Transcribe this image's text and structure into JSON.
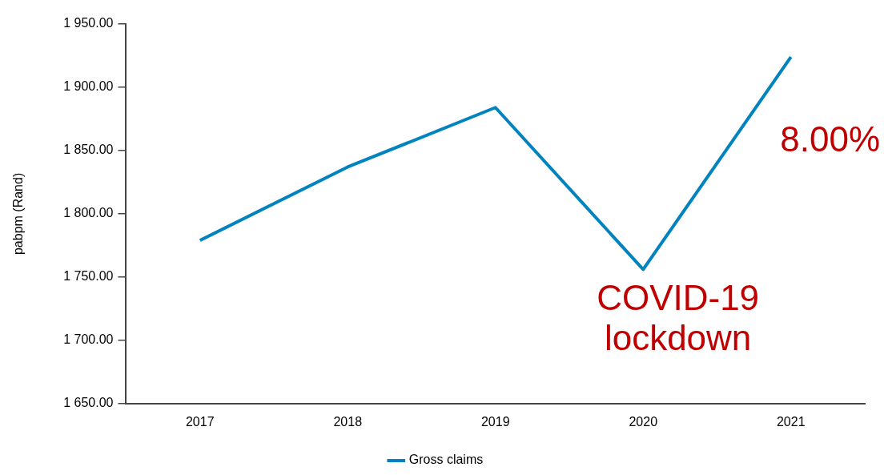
{
  "chart_data": {
    "type": "line",
    "ylabel": "pabpm (Rand)",
    "categories": [
      "2017",
      "2018",
      "2019",
      "2020",
      "2021"
    ],
    "series": [
      {
        "name": "Gross claims",
        "color": "#0083be",
        "values": [
          1779,
          1837,
          1884,
          1756,
          1924
        ]
      }
    ],
    "ylim": [
      1650,
      1950
    ],
    "yticks": [
      {
        "value": 1650,
        "label": "1 650.00"
      },
      {
        "value": 1700,
        "label": "1 700.00"
      },
      {
        "value": 1750,
        "label": "1 750.00"
      },
      {
        "value": 1800,
        "label": "1 800.00"
      },
      {
        "value": 1850,
        "label": "1 850.00"
      },
      {
        "value": 1900,
        "label": "1 900.00"
      },
      {
        "value": 1950,
        "label": "1 950.00"
      }
    ],
    "annotations": [
      "COVID-19 lockdown",
      "8.00%"
    ],
    "grid": false,
    "legend": "bottom",
    "marker": "none",
    "line_style": "solid"
  }
}
